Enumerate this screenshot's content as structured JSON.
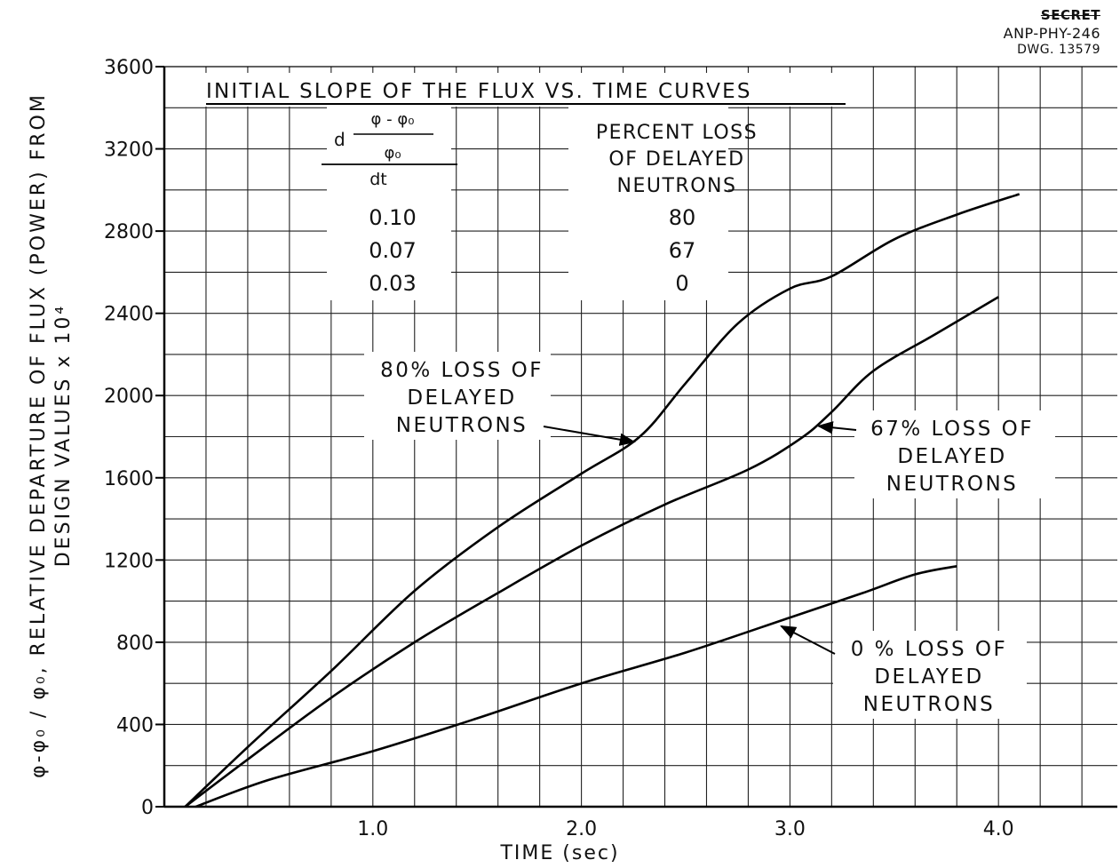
{
  "document": {
    "classification": "SECRET",
    "report_id": "ANP-PHY-246",
    "drawing_no": "DWG. 13579"
  },
  "chart_data": {
    "type": "line",
    "xlabel": "TIME (sec)",
    "ylabel_line1": "RELATIVE DEPARTURE OF FLUX (POWER) FROM",
    "ylabel_line2": "DESIGN VALUES x 10⁴",
    "ylabel_formula": "φ-φ₀ / φ₀",
    "xlim": [
      0,
      4.5
    ],
    "ylim": [
      0,
      3600
    ],
    "x_ticks": [
      1.0,
      2.0,
      3.0,
      4.0
    ],
    "x_tick_labels": [
      "1.0",
      "2.0",
      "3.0",
      "4.0"
    ],
    "y_ticks": [
      0,
      400,
      800,
      1200,
      1600,
      2000,
      2400,
      2800,
      3200,
      3600
    ],
    "y_tick_labels": [
      "0",
      "400",
      "800",
      "1200",
      "1600",
      "2000",
      "2400",
      "2800",
      "3200",
      "3600"
    ],
    "grid": true,
    "inset_table": {
      "title": "INITIAL SLOPE OF THE FLUX VS. TIME CURVES",
      "col1_header": "d(φ-φ₀)/φ₀ / dt",
      "col1_num": "φ - φ₀",
      "col1_den": "φ₀",
      "col1_d": "d",
      "col1_dt": "dt",
      "col2_header_lines": [
        "PERCENT LOSS",
        "OF DELAYED",
        "NEUTRONS"
      ],
      "rows": [
        {
          "slope": "0.10",
          "loss": "80"
        },
        {
          "slope": "0.07",
          "loss": "67"
        },
        {
          "slope": "0.03",
          "loss": "0"
        }
      ]
    },
    "series": [
      {
        "name": "80% LOSS OF DELAYED NEUTRONS",
        "label_lines": [
          "80% LOSS OF",
          "DELAYED",
          "NEUTRONS"
        ],
        "points": [
          [
            0.1,
            0
          ],
          [
            0.4,
            290
          ],
          [
            0.8,
            660
          ],
          [
            1.2,
            1050
          ],
          [
            1.6,
            1360
          ],
          [
            2.0,
            1620
          ],
          [
            2.28,
            1800
          ],
          [
            2.5,
            2060
          ],
          [
            2.75,
            2350
          ],
          [
            3.0,
            2520
          ],
          [
            3.2,
            2580
          ],
          [
            3.5,
            2760
          ],
          [
            3.8,
            2880
          ],
          [
            4.1,
            2980
          ]
        ]
      },
      {
        "name": "67% LOSS OF DELAYED NEUTRONS",
        "label_lines": [
          "67% LOSS OF",
          "DELAYED",
          "NEUTRONS"
        ],
        "points": [
          [
            0.1,
            0
          ],
          [
            0.4,
            230
          ],
          [
            0.8,
            530
          ],
          [
            1.2,
            800
          ],
          [
            1.6,
            1040
          ],
          [
            2.0,
            1270
          ],
          [
            2.4,
            1470
          ],
          [
            2.8,
            1640
          ],
          [
            3.05,
            1790
          ],
          [
            3.2,
            1920
          ],
          [
            3.4,
            2120
          ],
          [
            3.7,
            2300
          ],
          [
            4.0,
            2480
          ]
        ]
      },
      {
        "name": "0% LOSS OF DELAYED NEUTRONS",
        "label_lines": [
          "0 % LOSS OF",
          "DELAYED",
          "NEUTRONS"
        ],
        "points": [
          [
            0.15,
            0
          ],
          [
            0.5,
            130
          ],
          [
            1.0,
            270
          ],
          [
            1.5,
            430
          ],
          [
            2.0,
            600
          ],
          [
            2.5,
            750
          ],
          [
            3.0,
            920
          ],
          [
            3.35,
            1040
          ],
          [
            3.6,
            1130
          ],
          [
            3.8,
            1170
          ]
        ]
      }
    ]
  }
}
